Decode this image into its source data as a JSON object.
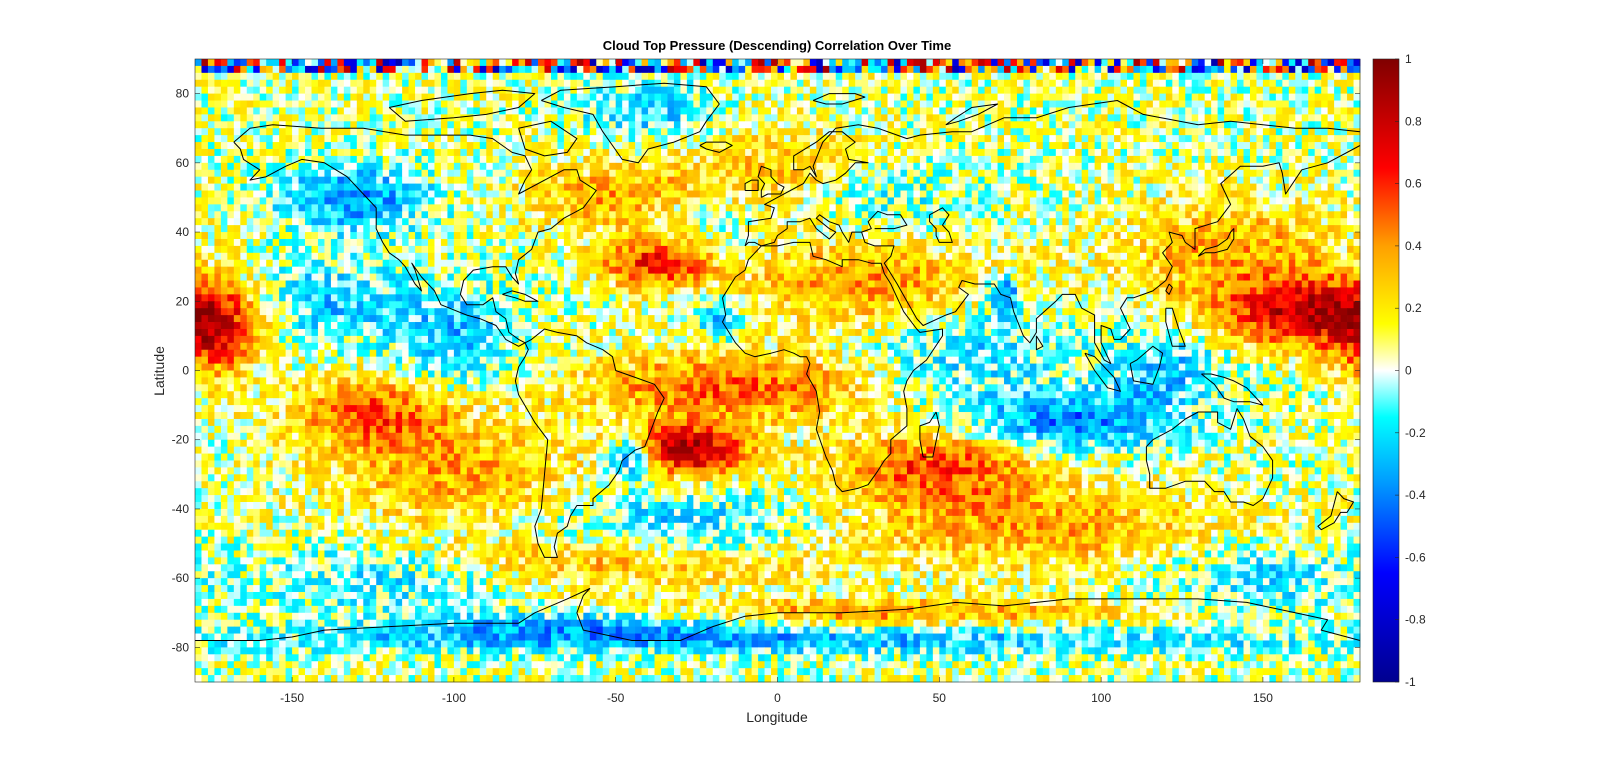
{
  "chart_data": {
    "type": "heatmap",
    "title": "Cloud Top Pressure (Descending) Correlation Over Time",
    "xlabel": "Longitude",
    "ylabel": "Latitude",
    "xlim": [
      -180,
      180
    ],
    "ylim": [
      -90,
      90
    ],
    "xticks": [
      -150,
      -100,
      -50,
      0,
      50,
      100,
      150
    ],
    "yticks": [
      80,
      60,
      40,
      20,
      0,
      -20,
      -40,
      -60,
      -80
    ],
    "colorbar": {
      "limits": [
        -1,
        1
      ],
      "ticks": [
        1,
        0.8,
        0.6,
        0.4,
        0.2,
        0,
        -0.2,
        -0.4,
        -0.6,
        -0.8,
        -1
      ],
      "colormap": "jet-white-centered",
      "stops": [
        {
          "v": -1.0,
          "c": "#00008f"
        },
        {
          "v": -0.65,
          "c": "#0000ff"
        },
        {
          "v": -0.35,
          "c": "#00a0ff"
        },
        {
          "v": -0.15,
          "c": "#00ffff"
        },
        {
          "v": 0.0,
          "c": "#ffffff"
        },
        {
          "v": 0.15,
          "c": "#ffff00"
        },
        {
          "v": 0.4,
          "c": "#ffa000"
        },
        {
          "v": 0.65,
          "c": "#ff0000"
        },
        {
          "v": 1.0,
          "c": "#800000"
        }
      ]
    },
    "grid_resolution_deg": 2,
    "background_correlation": 0.05,
    "features": [
      {
        "lon": -28,
        "lat": -23,
        "r_lon": 18,
        "r_lat": 7,
        "v": 0.85
      },
      {
        "lon": -15,
        "lat": -5,
        "r_lon": 45,
        "r_lat": 10,
        "v": 0.45
      },
      {
        "lon": -38,
        "lat": 31,
        "r_lon": 16,
        "r_lat": 7,
        "v": 0.6
      },
      {
        "lon": 165,
        "lat": 17,
        "r_lon": 30,
        "r_lat": 10,
        "v": 0.75
      },
      {
        "lon": -175,
        "lat": 10,
        "r_lon": 14,
        "r_lat": 12,
        "v": 0.55
      },
      {
        "lon": -125,
        "lat": -12,
        "r_lon": 25,
        "r_lat": 10,
        "v": 0.45
      },
      {
        "lon": 50,
        "lat": -28,
        "r_lon": 30,
        "r_lat": 10,
        "v": 0.5
      },
      {
        "lon": 30,
        "lat": 25,
        "r_lon": 40,
        "r_lat": 12,
        "v": 0.35
      },
      {
        "lon": 140,
        "lat": 35,
        "r_lon": 35,
        "r_lat": 15,
        "v": 0.3
      },
      {
        "lon": -100,
        "lat": -30,
        "r_lon": 40,
        "r_lat": 15,
        "v": 0.3
      },
      {
        "lon": 80,
        "lat": -45,
        "r_lon": 60,
        "r_lat": 12,
        "v": 0.3
      },
      {
        "lon": -50,
        "lat": -55,
        "r_lon": 60,
        "r_lat": 8,
        "v": 0.3
      },
      {
        "lon": 30,
        "lat": -70,
        "r_lon": 80,
        "r_lat": 4,
        "v": 0.35
      },
      {
        "lon": -50,
        "lat": 50,
        "r_lon": 30,
        "r_lat": 10,
        "v": 0.3
      },
      {
        "lon": 0,
        "lat": 55,
        "r_lon": 30,
        "r_lat": 15,
        "v": 0.25
      },
      {
        "lon": -45,
        "lat": -25,
        "r_lon": 8,
        "r_lat": 6,
        "v": -0.6
      },
      {
        "lon": 90,
        "lat": -15,
        "r_lon": 30,
        "r_lat": 8,
        "v": -0.45
      },
      {
        "lon": -130,
        "lat": 50,
        "r_lon": 25,
        "r_lat": 10,
        "v": -0.4
      },
      {
        "lon": -140,
        "lat": 20,
        "r_lon": 25,
        "r_lat": 12,
        "v": -0.3
      },
      {
        "lon": 70,
        "lat": 22,
        "r_lon": 5,
        "r_lat": 5,
        "v": -0.55
      },
      {
        "lon": -18,
        "lat": 15,
        "r_lon": 6,
        "r_lat": 6,
        "v": -0.45
      },
      {
        "lon": -40,
        "lat": 75,
        "r_lon": 20,
        "r_lat": 8,
        "v": -0.3
      },
      {
        "lon": 60,
        "lat": 5,
        "r_lon": 30,
        "r_lat": 15,
        "v": -0.25
      },
      {
        "lon": -30,
        "lat": -45,
        "r_lon": 40,
        "r_lat": 10,
        "v": -0.3
      },
      {
        "lon": 0,
        "lat": -78,
        "r_lon": 180,
        "r_lat": 4,
        "v": -0.35
      },
      {
        "lon": -60,
        "lat": -73,
        "r_lon": 60,
        "r_lat": 4,
        "v": -0.35
      },
      {
        "lon": -100,
        "lat": 10,
        "r_lon": 20,
        "r_lat": 15,
        "v": -0.3
      },
      {
        "lon": 120,
        "lat": 0,
        "r_lon": 20,
        "r_lat": 12,
        "v": -0.3
      },
      {
        "lon": -120,
        "lat": -60,
        "r_lon": 40,
        "r_lat": 10,
        "v": -0.25
      },
      {
        "lon": 150,
        "lat": -60,
        "r_lon": 30,
        "r_lat": 10,
        "v": -0.25
      },
      {
        "lon": 30,
        "lat": 50,
        "r_lon": 30,
        "r_lat": 10,
        "v": -0.2
      },
      {
        "lon": -20,
        "lat": 45,
        "r_lon": 20,
        "r_lat": 8,
        "v": -0.2
      }
    ]
  }
}
